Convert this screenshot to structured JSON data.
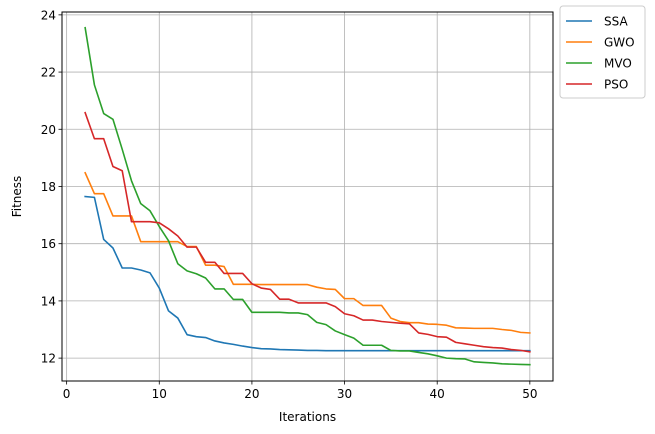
{
  "chart_data": {
    "type": "line",
    "title": "",
    "xlabel": "Iterations",
    "ylabel": "Fitness",
    "xlim": [
      -0.5,
      52.5
    ],
    "ylim": [
      11.2,
      24.1
    ],
    "xticks": [
      0,
      10,
      20,
      30,
      40,
      50
    ],
    "yticks": [
      12,
      14,
      16,
      18,
      20,
      22,
      24
    ],
    "grid": true,
    "legend_position": "outside-top-right",
    "x": [
      2,
      3,
      4,
      5,
      6,
      7,
      8,
      9,
      10,
      11,
      12,
      13,
      14,
      15,
      16,
      17,
      18,
      19,
      20,
      21,
      22,
      23,
      24,
      25,
      26,
      27,
      28,
      29,
      30,
      31,
      32,
      33,
      34,
      35,
      36,
      37,
      38,
      39,
      40,
      41,
      42,
      43,
      44,
      45,
      46,
      47,
      48,
      49,
      50
    ],
    "series": [
      {
        "name": "SSA",
        "color": "#1f77b4",
        "values": [
          17.65,
          17.62,
          16.15,
          15.85,
          15.15,
          15.15,
          15.08,
          14.98,
          14.45,
          13.65,
          13.4,
          12.82,
          12.75,
          12.72,
          12.6,
          12.53,
          12.48,
          12.42,
          12.37,
          12.33,
          12.32,
          12.3,
          12.29,
          12.28,
          12.27,
          12.27,
          12.26,
          12.26,
          12.26,
          12.26,
          12.26,
          12.26,
          12.26,
          12.26,
          12.26,
          12.26,
          12.26,
          12.26,
          12.26,
          12.26,
          12.26,
          12.26,
          12.26,
          12.26,
          12.26,
          12.26,
          12.26,
          12.26,
          12.26
        ]
      },
      {
        "name": "GWO",
        "color": "#ff7f0e",
        "values": [
          18.48,
          17.75,
          17.75,
          16.97,
          16.97,
          16.97,
          16.07,
          16.07,
          16.07,
          16.07,
          16.07,
          15.9,
          15.9,
          15.25,
          15.25,
          15.2,
          14.58,
          14.58,
          14.58,
          14.57,
          14.57,
          14.57,
          14.57,
          14.57,
          14.57,
          14.48,
          14.42,
          14.4,
          14.08,
          14.08,
          13.84,
          13.84,
          13.84,
          13.4,
          13.28,
          13.24,
          13.24,
          13.19,
          13.18,
          13.15,
          13.06,
          13.05,
          13.04,
          13.04,
          13.04,
          13.0,
          12.97,
          12.9,
          12.88
        ]
      },
      {
        "name": "MVO",
        "color": "#2ca02c",
        "values": [
          23.55,
          21.55,
          20.55,
          20.35,
          19.3,
          18.2,
          17.4,
          17.15,
          16.6,
          16.1,
          15.3,
          15.05,
          14.95,
          14.8,
          14.42,
          14.42,
          14.05,
          14.05,
          13.6,
          13.6,
          13.6,
          13.6,
          13.58,
          13.58,
          13.52,
          13.25,
          13.17,
          12.95,
          12.82,
          12.7,
          12.45,
          12.45,
          12.45,
          12.27,
          12.25,
          12.25,
          12.2,
          12.15,
          12.08,
          12.0,
          11.98,
          11.97,
          11.87,
          11.85,
          11.83,
          11.8,
          11.79,
          11.78,
          11.77
        ]
      },
      {
        "name": "PSO",
        "color": "#d62728",
        "values": [
          20.58,
          19.67,
          19.67,
          18.7,
          18.55,
          16.77,
          16.77,
          16.77,
          16.73,
          16.52,
          16.27,
          15.88,
          15.88,
          15.35,
          15.35,
          14.96,
          14.96,
          14.96,
          14.6,
          14.45,
          14.4,
          14.06,
          14.06,
          13.93,
          13.93,
          13.93,
          13.93,
          13.8,
          13.55,
          13.48,
          13.33,
          13.33,
          13.28,
          13.25,
          13.22,
          13.2,
          12.88,
          12.83,
          12.75,
          12.73,
          12.55,
          12.5,
          12.45,
          12.4,
          12.37,
          12.35,
          12.3,
          12.27,
          12.22
        ]
      }
    ]
  }
}
